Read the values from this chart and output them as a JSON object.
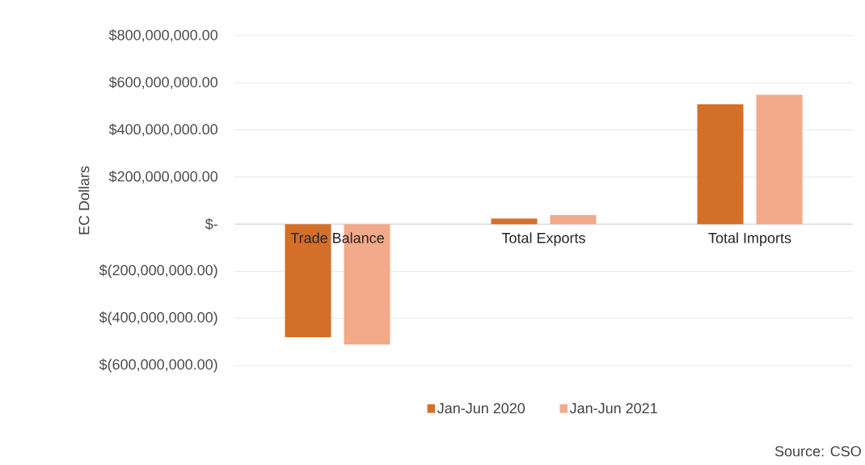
{
  "chart_data": {
    "type": "bar",
    "ylabel": "EC Dollars",
    "categories": [
      "Trade Balance",
      "Total Exports",
      "Total Imports"
    ],
    "series": [
      {
        "name": "Jan-Jun 2020",
        "color": "#d46f2a",
        "values": [
          -480000000,
          24000000,
          508000000
        ]
      },
      {
        "name": "Jan-Jun 2021",
        "color": "#f2aa8a",
        "values": [
          -511000000,
          38000000,
          549000000
        ]
      }
    ],
    "ylim": [
      -600000000,
      800000000
    ],
    "yticks": [
      {
        "value": -600000000,
        "label": "$(600,000,000.00)"
      },
      {
        "value": -400000000,
        "label": "$(400,000,000.00)"
      },
      {
        "value": -200000000,
        "label": "$(200,000,000.00)"
      },
      {
        "value": 0,
        "label": "$-"
      },
      {
        "value": 200000000,
        "label": "$200,000,000.00"
      },
      {
        "value": 400000000,
        "label": "$400,000,000.00"
      },
      {
        "value": 600000000,
        "label": "$600,000,000.00"
      },
      {
        "value": 800000000,
        "label": "$800,000,000.00"
      }
    ],
    "grid": "y",
    "legend": "bottom",
    "annotations": [
      "Source: CSO"
    ]
  }
}
